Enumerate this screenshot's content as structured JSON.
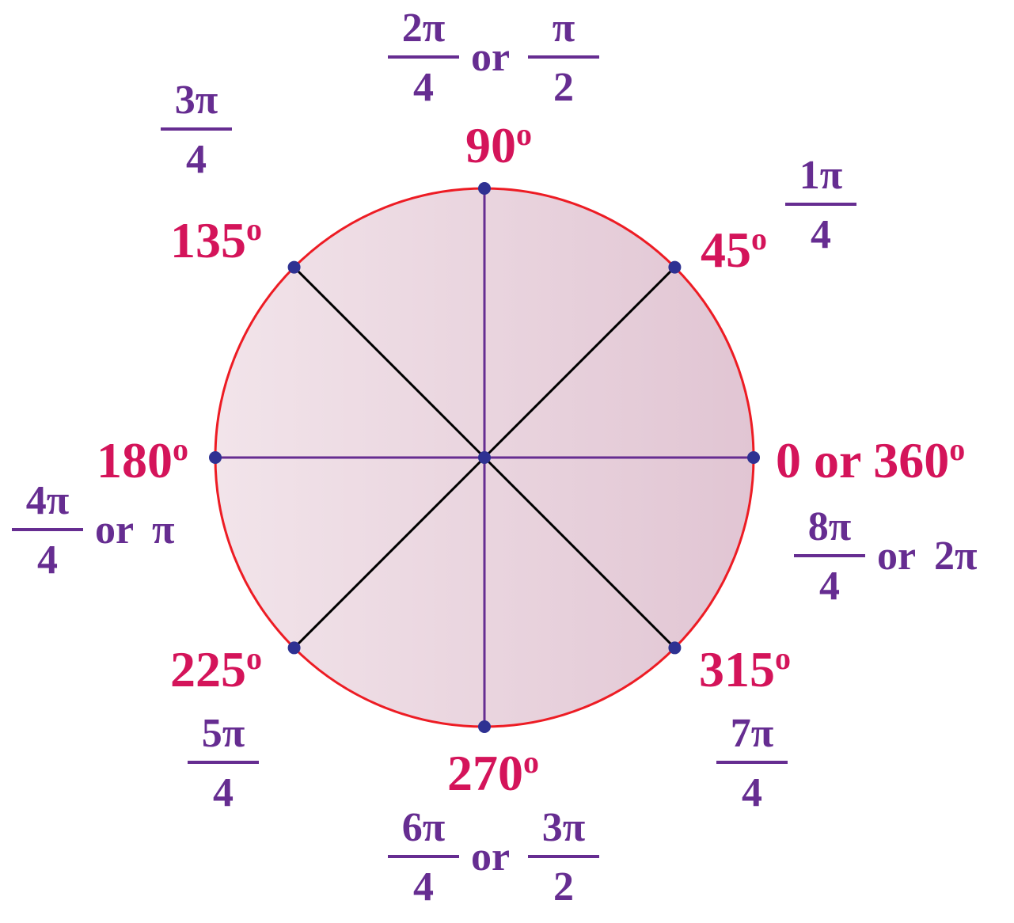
{
  "colors": {
    "circle_stroke": "#ed1c24",
    "fill_light": "#f2e4ea",
    "fill_dark": "#e1c5d3",
    "degree_text": "#d4145a",
    "radian_text": "#662d91",
    "point": "#2e3192",
    "axis_line": "#662d91",
    "diagonal_line": "#000000"
  },
  "degree_mark": "o",
  "degree_labels": [
    {
      "angle": 0,
      "text": "0 or 360"
    },
    {
      "angle": 45,
      "text": "45"
    },
    {
      "angle": 90,
      "text": "90"
    },
    {
      "angle": 135,
      "text": "135"
    },
    {
      "angle": 180,
      "text": "180"
    },
    {
      "angle": 225,
      "text": "225"
    },
    {
      "angle": 270,
      "text": "270"
    },
    {
      "angle": 315,
      "text": "315"
    }
  ],
  "radian_labels": [
    {
      "angle": 0,
      "parts": [
        {
          "num": "8π",
          "den": "4"
        },
        {
          "text": "or"
        },
        {
          "text": "2π"
        }
      ]
    },
    {
      "angle": 45,
      "parts": [
        {
          "num": "1π",
          "den": "4"
        }
      ]
    },
    {
      "angle": 90,
      "parts": [
        {
          "num": "2π",
          "den": "4"
        },
        {
          "text": "or"
        },
        {
          "num": "π",
          "den": "2"
        }
      ]
    },
    {
      "angle": 135,
      "parts": [
        {
          "num": "3π",
          "den": "4"
        }
      ]
    },
    {
      "angle": 180,
      "parts": [
        {
          "num": "4π",
          "den": "4"
        },
        {
          "text": "or"
        },
        {
          "text": "π"
        }
      ]
    },
    {
      "angle": 225,
      "parts": [
        {
          "num": "5π",
          "den": "4"
        }
      ]
    },
    {
      "angle": 270,
      "parts": [
        {
          "num": "6π",
          "den": "4"
        },
        {
          "text": "or"
        },
        {
          "num": "3π",
          "den": "2"
        }
      ]
    },
    {
      "angle": 315,
      "parts": [
        {
          "num": "7π",
          "den": "4"
        }
      ]
    }
  ]
}
